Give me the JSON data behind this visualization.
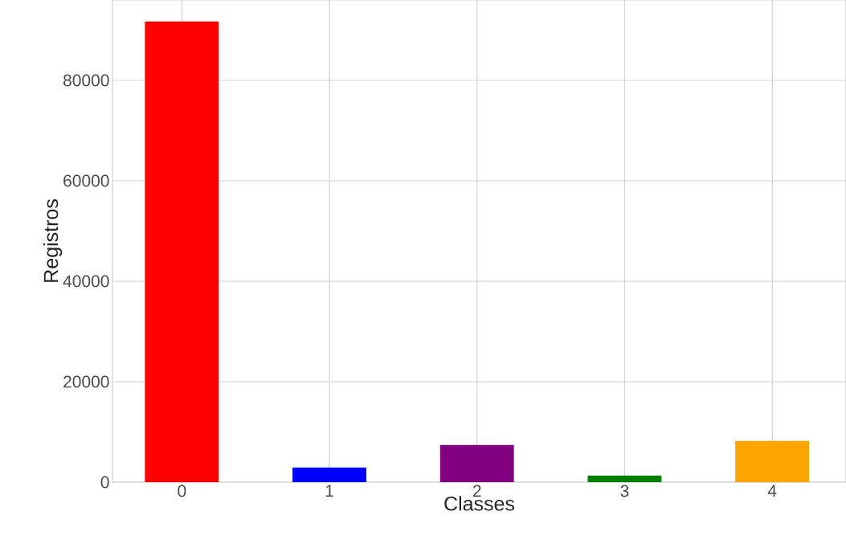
{
  "chart_data": {
    "type": "bar",
    "xlabel": "Classes",
    "ylabel": "Registros",
    "categories": [
      "0",
      "1",
      "2",
      "3",
      "4"
    ],
    "values": [
      91700,
      2900,
      7400,
      1300,
      8200
    ],
    "colors": [
      "#ff0000",
      "#0000ff",
      "#800080",
      "#008000",
      "#ffa500"
    ],
    "ylim": [
      0,
      96000
    ],
    "yticks": [
      0,
      20000,
      40000,
      60000,
      80000
    ],
    "grid": true
  }
}
